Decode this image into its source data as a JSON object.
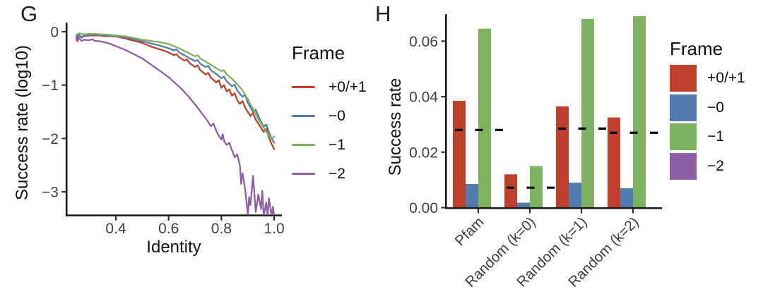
{
  "panels": {
    "g": {
      "label": "G"
    },
    "h": {
      "label": "H"
    }
  },
  "chart_data": [
    {
      "id": "g",
      "type": "line",
      "panel": "G",
      "title": "",
      "xlabel": "Identity",
      "ylabel": "Success rate (log10)",
      "xlim": [
        0.22,
        1.02
      ],
      "ylim": [
        -3.45,
        0.05
      ],
      "grid": false,
      "legend_title": "Frame",
      "legend_position": "right",
      "xticks": [
        {
          "value": 0.4,
          "label": "0.4"
        },
        {
          "value": 0.6,
          "label": "0.6"
        },
        {
          "value": 0.8,
          "label": "0.8"
        },
        {
          "value": 1.0,
          "label": "1.0"
        }
      ],
      "yticks": [
        {
          "value": 0,
          "label": "0"
        },
        {
          "value": -1,
          "label": "−1"
        },
        {
          "value": -2,
          "label": "−2"
        },
        {
          "value": -3,
          "label": "−3"
        }
      ],
      "series": [
        {
          "name": "+0/+1",
          "color": "#bf3f2d",
          "points": [
            [
              0.25,
              -0.08
            ],
            [
              0.255,
              -0.13
            ],
            [
              0.26,
              -0.07
            ],
            [
              0.27,
              -0.11
            ],
            [
              0.28,
              -0.08
            ],
            [
              0.3,
              -0.07
            ],
            [
              0.32,
              -0.07
            ],
            [
              0.34,
              -0.07
            ],
            [
              0.36,
              -0.08
            ],
            [
              0.38,
              -0.08
            ],
            [
              0.4,
              -0.09
            ],
            [
              0.42,
              -0.11
            ],
            [
              0.44,
              -0.13
            ],
            [
              0.46,
              -0.16
            ],
            [
              0.48,
              -0.18
            ],
            [
              0.5,
              -0.21
            ],
            [
              0.52,
              -0.25
            ],
            [
              0.54,
              -0.29
            ],
            [
              0.56,
              -0.32
            ],
            [
              0.58,
              -0.35
            ],
            [
              0.6,
              -0.39
            ],
            [
              0.62,
              -0.44
            ],
            [
              0.63,
              -0.42
            ],
            [
              0.64,
              -0.48
            ],
            [
              0.66,
              -0.54
            ],
            [
              0.67,
              -0.52
            ],
            [
              0.68,
              -0.59
            ],
            [
              0.7,
              -0.66
            ],
            [
              0.71,
              -0.63
            ],
            [
              0.72,
              -0.72
            ],
            [
              0.74,
              -0.8
            ],
            [
              0.75,
              -0.77
            ],
            [
              0.76,
              -0.86
            ],
            [
              0.78,
              -0.95
            ],
            [
              0.79,
              -0.91
            ],
            [
              0.8,
              -1.05
            ],
            [
              0.81,
              -1.0
            ],
            [
              0.82,
              -1.12
            ],
            [
              0.83,
              -1.08
            ],
            [
              0.84,
              -1.2
            ],
            [
              0.85,
              -1.15
            ],
            [
              0.86,
              -1.28
            ],
            [
              0.87,
              -1.35
            ],
            [
              0.88,
              -1.3
            ],
            [
              0.89,
              -1.42
            ],
            [
              0.9,
              -1.5
            ],
            [
              0.91,
              -1.58
            ],
            [
              0.92,
              -1.52
            ],
            [
              0.93,
              -1.65
            ],
            [
              0.94,
              -1.72
            ],
            [
              0.95,
              -1.8
            ],
            [
              0.96,
              -1.88
            ],
            [
              0.97,
              -1.82
            ],
            [
              0.98,
              -1.98
            ],
            [
              0.99,
              -2.1
            ],
            [
              1.0,
              -2.2
            ]
          ]
        },
        {
          "name": "−0",
          "color": "#527cb0",
          "points": [
            [
              0.25,
              -0.11
            ],
            [
              0.26,
              -0.06
            ],
            [
              0.27,
              -0.1
            ],
            [
              0.28,
              -0.07
            ],
            [
              0.3,
              -0.06
            ],
            [
              0.32,
              -0.05
            ],
            [
              0.34,
              -0.06
            ],
            [
              0.36,
              -0.06
            ],
            [
              0.38,
              -0.07
            ],
            [
              0.4,
              -0.08
            ],
            [
              0.42,
              -0.09
            ],
            [
              0.44,
              -0.11
            ],
            [
              0.46,
              -0.13
            ],
            [
              0.48,
              -0.15
            ],
            [
              0.5,
              -0.18
            ],
            [
              0.52,
              -0.2
            ],
            [
              0.54,
              -0.23
            ],
            [
              0.56,
              -0.25
            ],
            [
              0.58,
              -0.28
            ],
            [
              0.6,
              -0.31
            ],
            [
              0.62,
              -0.35
            ],
            [
              0.63,
              -0.33
            ],
            [
              0.64,
              -0.39
            ],
            [
              0.66,
              -0.44
            ],
            [
              0.68,
              -0.5
            ],
            [
              0.7,
              -0.55
            ],
            [
              0.71,
              -0.53
            ],
            [
              0.72,
              -0.6
            ],
            [
              0.74,
              -0.66
            ],
            [
              0.75,
              -0.64
            ],
            [
              0.76,
              -0.72
            ],
            [
              0.78,
              -0.79
            ],
            [
              0.8,
              -0.87
            ],
            [
              0.81,
              -0.84
            ],
            [
              0.82,
              -0.93
            ],
            [
              0.84,
              -1.02
            ],
            [
              0.85,
              -0.99
            ],
            [
              0.86,
              -1.1
            ],
            [
              0.88,
              -1.22
            ],
            [
              0.89,
              -1.18
            ],
            [
              0.9,
              -1.33
            ],
            [
              0.91,
              -1.42
            ],
            [
              0.92,
              -1.5
            ],
            [
              0.93,
              -1.46
            ],
            [
              0.94,
              -1.58
            ],
            [
              0.95,
              -1.68
            ],
            [
              0.96,
              -1.78
            ],
            [
              0.97,
              -1.74
            ],
            [
              0.98,
              -1.88
            ],
            [
              0.99,
              -2.0
            ],
            [
              1.0,
              -2.08
            ]
          ]
        },
        {
          "name": "−1",
          "color": "#7eb25e",
          "points": [
            [
              0.25,
              -0.06
            ],
            [
              0.26,
              -0.03
            ],
            [
              0.28,
              -0.05
            ],
            [
              0.3,
              -0.04
            ],
            [
              0.32,
              -0.04
            ],
            [
              0.34,
              -0.05
            ],
            [
              0.36,
              -0.05
            ],
            [
              0.38,
              -0.06
            ],
            [
              0.4,
              -0.07
            ],
            [
              0.42,
              -0.08
            ],
            [
              0.44,
              -0.09
            ],
            [
              0.46,
              -0.11
            ],
            [
              0.48,
              -0.13
            ],
            [
              0.5,
              -0.15
            ],
            [
              0.52,
              -0.16
            ],
            [
              0.54,
              -0.18
            ],
            [
              0.56,
              -0.19
            ],
            [
              0.58,
              -0.21
            ],
            [
              0.6,
              -0.23
            ],
            [
              0.62,
              -0.27
            ],
            [
              0.64,
              -0.31
            ],
            [
              0.66,
              -0.36
            ],
            [
              0.68,
              -0.41
            ],
            [
              0.7,
              -0.46
            ],
            [
              0.71,
              -0.44
            ],
            [
              0.72,
              -0.5
            ],
            [
              0.74,
              -0.56
            ],
            [
              0.76,
              -0.62
            ],
            [
              0.78,
              -0.68
            ],
            [
              0.8,
              -0.74
            ],
            [
              0.81,
              -0.72
            ],
            [
              0.82,
              -0.8
            ],
            [
              0.84,
              -0.88
            ],
            [
              0.86,
              -0.98
            ],
            [
              0.88,
              -1.1
            ],
            [
              0.89,
              -1.18
            ],
            [
              0.9,
              -1.26
            ],
            [
              0.91,
              -1.36
            ],
            [
              0.92,
              -1.44
            ],
            [
              0.93,
              -1.54
            ],
            [
              0.94,
              -1.64
            ],
            [
              0.95,
              -1.72
            ],
            [
              0.96,
              -1.8
            ],
            [
              0.97,
              -1.87
            ],
            [
              0.98,
              -1.94
            ],
            [
              0.99,
              -2.02
            ],
            [
              1.0,
              -1.96
            ]
          ]
        },
        {
          "name": "−2",
          "color": "#8c60a7",
          "points": [
            [
              0.25,
              -0.14
            ],
            [
              0.255,
              -0.18
            ],
            [
              0.26,
              -0.12
            ],
            [
              0.27,
              -0.17
            ],
            [
              0.28,
              -0.15
            ],
            [
              0.3,
              -0.16
            ],
            [
              0.31,
              -0.14
            ],
            [
              0.32,
              -0.17
            ],
            [
              0.34,
              -0.18
            ],
            [
              0.36,
              -0.2
            ],
            [
              0.38,
              -0.23
            ],
            [
              0.4,
              -0.27
            ],
            [
              0.42,
              -0.31
            ],
            [
              0.44,
              -0.35
            ],
            [
              0.46,
              -0.4
            ],
            [
              0.48,
              -0.45
            ],
            [
              0.5,
              -0.5
            ],
            [
              0.52,
              -0.57
            ],
            [
              0.54,
              -0.64
            ],
            [
              0.56,
              -0.71
            ],
            [
              0.58,
              -0.78
            ],
            [
              0.6,
              -0.85
            ],
            [
              0.62,
              -0.94
            ],
            [
              0.64,
              -1.03
            ],
            [
              0.66,
              -1.13
            ],
            [
              0.68,
              -1.24
            ],
            [
              0.7,
              -1.36
            ],
            [
              0.72,
              -1.49
            ],
            [
              0.74,
              -1.62
            ],
            [
              0.75,
              -1.69
            ],
            [
              0.76,
              -1.77
            ],
            [
              0.77,
              -1.72
            ],
            [
              0.78,
              -1.85
            ],
            [
              0.79,
              -1.95
            ],
            [
              0.8,
              -2.02
            ],
            [
              0.805,
              -1.92
            ],
            [
              0.81,
              -2.05
            ],
            [
              0.82,
              -2.12
            ],
            [
              0.83,
              -2.08
            ],
            [
              0.84,
              -2.22
            ],
            [
              0.85,
              -2.35
            ],
            [
              0.86,
              -2.3
            ],
            [
              0.87,
              -2.5
            ],
            [
              0.875,
              -2.85
            ],
            [
              0.88,
              -2.65
            ],
            [
              0.89,
              -2.95
            ],
            [
              0.9,
              -3.42
            ],
            [
              0.905,
              -3.1
            ],
            [
              0.91,
              -3.25
            ],
            [
              0.92,
              -2.7
            ],
            [
              0.93,
              -3.38
            ],
            [
              0.94,
              -3.05
            ],
            [
              0.95,
              -3.32
            ],
            [
              0.955,
              -2.98
            ],
            [
              0.96,
              -3.45
            ],
            [
              0.97,
              -3.2
            ],
            [
              0.975,
              -3.45
            ],
            [
              0.98,
              -3.12
            ],
            [
              0.99,
              -3.45
            ],
            [
              0.995,
              -3.28
            ],
            [
              1.0,
              -3.45
            ]
          ]
        }
      ]
    },
    {
      "id": "h",
      "type": "bar",
      "panel": "H",
      "title": "",
      "xlabel": "",
      "ylabel": "Success rate",
      "ylim": [
        0,
        0.069
      ],
      "grid": false,
      "legend_title": "Frame",
      "legend_position": "right",
      "categories": [
        "Pfam",
        "Random (k=0)",
        "Random (k=1)",
        "Random (k=2)"
      ],
      "yticks": [
        {
          "value": 0.0,
          "label": "0.00"
        },
        {
          "value": 0.02,
          "label": "0.02"
        },
        {
          "value": 0.04,
          "label": "0.04"
        },
        {
          "value": 0.06,
          "label": "0.06"
        }
      ],
      "series": [
        {
          "name": "+0/+1",
          "color": "#bf3f2d",
          "values": [
            0.0385,
            0.012,
            0.0365,
            0.0325
          ]
        },
        {
          "name": "−0",
          "color": "#527cb0",
          "values": [
            0.0085,
            0.0018,
            0.009,
            0.007
          ]
        },
        {
          "name": "−1",
          "color": "#7eb25e",
          "values": [
            0.0645,
            0.015,
            0.068,
            0.069
          ]
        },
        {
          "name": "−2",
          "color": "#8c60a7",
          "values": [
            0,
            0,
            0,
            0
          ]
        }
      ],
      "dashed_mean_lines": {
        "color": "#000000",
        "values": [
          0.028,
          0.0072,
          0.0285,
          0.027
        ]
      }
    }
  ]
}
